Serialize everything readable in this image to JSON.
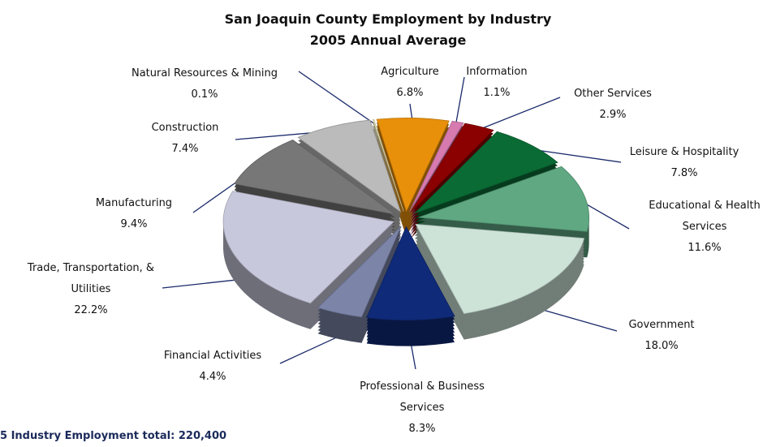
{
  "chart_data": {
    "type": "pie",
    "title": "San Joaquin County Employment by Industry",
    "subtitle": "2005 Annual Average",
    "footnote": "5 Industry Employment total: 220,400",
    "categories": [
      "Agriculture",
      "Information",
      "Other Services",
      "Leisure & Hospitality",
      "Educational & Health Services",
      "Government",
      "Professional & Business Services",
      "Financial Activities",
      "Trade, Transportation, & Utilities",
      "Manufacturing",
      "Construction",
      "Natural Resources & Mining"
    ],
    "values": [
      6.8,
      1.1,
      2.9,
      7.8,
      11.6,
      18.0,
      8.3,
      4.4,
      22.2,
      9.4,
      7.4,
      0.1
    ],
    "value_labels": [
      "6.8%",
      "1.1%",
      "2.9%",
      "7.8%",
      "11.6%",
      "18.0%",
      "8.3%",
      "4.4%",
      "22.2%",
      "9.4%",
      "7.4%",
      "0.1%"
    ],
    "colors": [
      "#e8900a",
      "#d67ab0",
      "#8b0000",
      "#0a6b35",
      "#5fa882",
      "#cde3d8",
      "#0f2a78",
      "#7c84a8",
      "#c8c8dc",
      "#777777",
      "#bbbbbb",
      "#f2efc0"
    ]
  }
}
